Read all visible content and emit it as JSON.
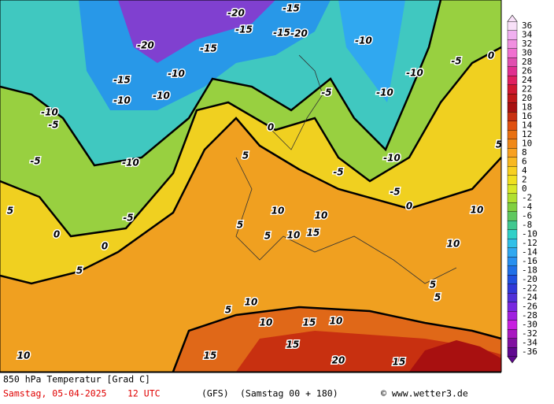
{
  "map": {
    "contour_labels": [
      -10,
      -5,
      -5,
      5,
      0,
      0,
      5,
      -5,
      -10,
      -10,
      -10,
      -10,
      -15,
      -15,
      -20,
      -15,
      -20,
      -15,
      -15,
      -20,
      -10,
      -10,
      -5,
      0,
      -10,
      -5,
      0,
      -5,
      -10,
      -5,
      0,
      5,
      5,
      5,
      10,
      10,
      10,
      15,
      5,
      10,
      5,
      10,
      5,
      10,
      15,
      10,
      15,
      20,
      15,
      15,
      10,
      10,
      5
    ]
  },
  "colorbar": {
    "labels": [
      36,
      34,
      32,
      30,
      28,
      26,
      24,
      22,
      20,
      18,
      16,
      14,
      12,
      10,
      8,
      6,
      4,
      2,
      0,
      -2,
      -4,
      -6,
      -8,
      -10,
      -12,
      -14,
      -16,
      -18,
      -20,
      -22,
      -24,
      -26,
      -28,
      -30,
      -32,
      -34,
      -36
    ],
    "colors": [
      "#f8e0f8",
      "#f0b0f0",
      "#f090e0",
      "#f070d0",
      "#e050b0",
      "#e03090",
      "#e02060",
      "#d01830",
      "#c01818",
      "#a81010",
      "#c83010",
      "#e05010",
      "#e87010",
      "#f08818",
      "#f8a020",
      "#f8b820",
      "#f8d020",
      "#f0e020",
      "#d8e828",
      "#b0e030",
      "#80d040",
      "#60c860",
      "#40c890",
      "#30d0c8",
      "#30c0e8",
      "#30a8f0",
      "#2890f0",
      "#2070e8",
      "#2050e0",
      "#3038d8",
      "#5030d8",
      "#7828e0",
      "#a020e0",
      "#c820e0",
      "#a818c0",
      "#8010a0",
      "#600890"
    ]
  },
  "footer": {
    "title": "850 hPa Temperatur [Grad C]",
    "date": "Samstag, 05-04-2025",
    "time": "12 UTC",
    "model": "(GFS)",
    "run": "(Samstag 00 + 180)",
    "credit": "© www.wetter3.de"
  }
}
